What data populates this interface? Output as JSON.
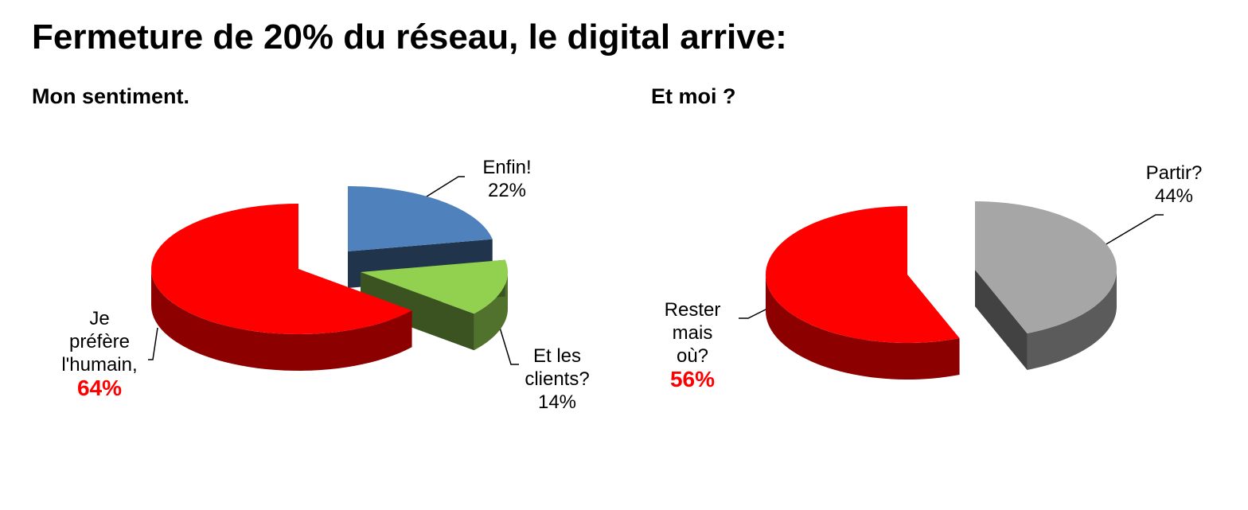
{
  "title": "Fermeture de 20% du réseau, le digital arrive:",
  "chart_data": [
    {
      "type": "pie",
      "title": "Mon sentiment.",
      "categories": [
        "Enfin!",
        "Et les clients?",
        "Je préfère l'humain,"
      ],
      "values": [
        22,
        14,
        64
      ],
      "value_labels": [
        "22%",
        "14%",
        "64%"
      ],
      "colors": [
        "#4f81bd",
        "#92d050",
        "#ff0000"
      ]
    },
    {
      "type": "pie",
      "title": "Et moi ?",
      "categories": [
        "Partir?",
        "Rester mais où?"
      ],
      "values": [
        44,
        56
      ],
      "value_labels": [
        "44%",
        "56%"
      ],
      "colors": [
        "#a6a6a6",
        "#ff0000"
      ]
    }
  ]
}
